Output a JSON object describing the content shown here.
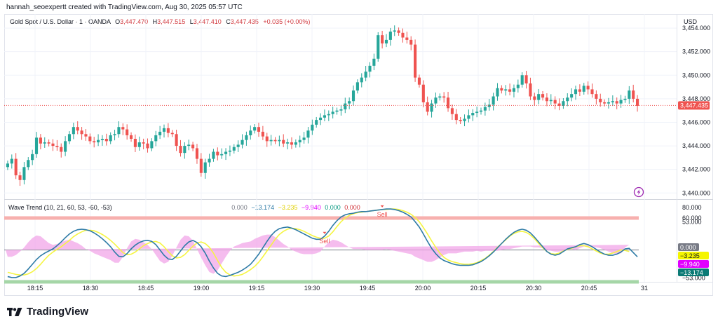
{
  "header": {
    "caption": "hannah_seoexpertt created with TradingView.com, Aug 30, 2025 05:57 UTC"
  },
  "legend": {
    "symbol": "Gold Spot / U.S. Dollar · 1 · OANDA",
    "o_label": "O",
    "o_value": "3,447.470",
    "h_label": "H",
    "h_value": "3,447.515",
    "l_label": "L",
    "l_value": "3,447.410",
    "c_label": "C",
    "c_value": "3,447.435",
    "change": "+0.035 (+0.00%)"
  },
  "indicator": {
    "name": "Wave Trend (10, 21, 60, 53, -60, -53)",
    "values": [
      "0.000",
      "−13.174",
      "−3.235",
      "−9.940",
      "0.000",
      "0.000"
    ]
  },
  "price_axis": {
    "currency": "USD",
    "last_price": "3,447.435"
  },
  "osc_axis_badges": [
    "0.000",
    "−3.235",
    "−9.940",
    "−13.174"
  ],
  "brand": {
    "name": "TradingView"
  },
  "colors": {
    "up": "#26a69a",
    "down": "#ef5350",
    "wt1": "#2e7ba6",
    "wt2": "#f5f542",
    "histogram": "#f2a6e8",
    "overbought": "#f7b0ae",
    "oversold": "#a5d6a7",
    "badge_wt1": "#0b7a75",
    "badge_wt2": "#f5f500",
    "badge_diff": "#e100ff"
  },
  "chart_data": [
    {
      "type": "candlestick",
      "title": "Gold Spot / U.S. Dollar · 1 · OANDA",
      "y_ticks": [
        3440,
        3442,
        3444,
        3446,
        3448,
        3450,
        3452,
        3454
      ],
      "y_tick_labels": [
        "3,440.000",
        "3,442.000",
        "3,444.000",
        "3,446.000",
        "3,448.000",
        "3,450.000",
        "3,452.000",
        "3,454.000"
      ],
      "ylim": [
        3439.6,
        3454.6
      ],
      "x_ticks": [
        "18:15",
        "18:30",
        "18:45",
        "19:00",
        "19:15",
        "19:30",
        "19:45",
        "20:00",
        "20:15",
        "20:30",
        "20:45",
        "31"
      ],
      "last_price": 3447.435,
      "closes": [
        3442.5,
        3442.9,
        3441.5,
        3441.1,
        3442.2,
        3442.8,
        3443.3,
        3444.7,
        3444.2,
        3444.3,
        3444.2,
        3444.0,
        3443.9,
        3443.5,
        3444.4,
        3445.0,
        3445.6,
        3445.3,
        3445.0,
        3444.8,
        3444.4,
        3444.3,
        3444.5,
        3444.6,
        3444.4,
        3444.9,
        3445.0,
        3445.6,
        3445.4,
        3444.9,
        3444.6,
        3443.9,
        3444.3,
        3444.2,
        3443.8,
        3444.4,
        3444.9,
        3445.2,
        3445.5,
        3445.1,
        3445.0,
        3444.0,
        3443.4,
        3444.0,
        3444.1,
        3443.8,
        3442.9,
        3441.7,
        3442.6,
        3442.9,
        3443.5,
        3443.2,
        3443.3,
        3443.5,
        3443.6,
        3443.9,
        3444.1,
        3444.5,
        3444.9,
        3445.3,
        3445.6,
        3445.2,
        3444.8,
        3444.4,
        3444.5,
        3444.4,
        3444.5,
        3444.2,
        3444.3,
        3444.1,
        3444.3,
        3444.5,
        3444.7,
        3445.3,
        3445.8,
        3446.2,
        3446.4,
        3446.6,
        3446.7,
        3446.9,
        3447.0,
        3447.1,
        3447.6,
        3447.8,
        3448.7,
        3449.4,
        3449.8,
        3450.3,
        3450.8,
        3451.4,
        3453.4,
        3452.7,
        3453.0,
        3453.7,
        3453.8,
        3453.6,
        3453.2,
        3453.0,
        3452.6,
        3449.8,
        3449.2,
        3447.7,
        3446.9,
        3447.6,
        3448.1,
        3448.2,
        3448.1,
        3447.2,
        3446.7,
        3446.2,
        3446.1,
        3446.3,
        3446.6,
        3446.8,
        3446.9,
        3447.0,
        3447.3,
        3447.5,
        3448.2,
        3448.9,
        3448.7,
        3448.8,
        3448.6,
        3448.9,
        3449.2,
        3450.0,
        3449.3,
        3448.2,
        3447.9,
        3448.4,
        3448.1,
        3447.8,
        3447.9,
        3447.6,
        3447.4,
        3447.8,
        3448.1,
        3448.4,
        3448.8,
        3448.6,
        3449.1,
        3448.8,
        3448.4,
        3448.0,
        3447.7,
        3447.6,
        3447.7,
        3447.8,
        3447.6,
        3447.9,
        3448.0,
        3448.7,
        3448.0,
        3447.4
      ]
    },
    {
      "type": "line",
      "title": "Wave Trend (10, 21, 60, 53, -60, -53)",
      "ylim": [
        -60,
        85
      ],
      "y_tick_labels": [
        "80.000",
        "60.000",
        "53.000",
        "−53.000"
      ],
      "overbought": 60,
      "oversold": -60,
      "annotations": [
        {
          "label": "Sell",
          "index": 77
        },
        {
          "label": "Sell",
          "index": 91
        }
      ],
      "series": [
        {
          "name": "",
          "values": [
            -50,
            -52,
            -52,
            -49,
            -44,
            -36,
            -27,
            -18,
            -11,
            -6,
            -2,
            2,
            8,
            15,
            23,
            30,
            35,
            38,
            39,
            38,
            36,
            32,
            27,
            21,
            14,
            6,
            -4,
            -12,
            -13,
            -7,
            2,
            9,
            14,
            17,
            18,
            16,
            10,
            0,
            -10,
            -17,
            -18,
            -12,
            -2,
            8,
            15,
            18,
            14,
            6,
            -6,
            -21,
            -34,
            -44,
            -49,
            -50,
            -48,
            -45,
            -42,
            -38,
            -33,
            -27,
            -18,
            -8,
            4,
            16,
            27,
            35,
            40,
            42,
            43,
            41,
            38,
            34,
            30,
            26,
            22,
            20,
            20,
            26,
            35,
            46,
            55,
            62,
            66,
            68,
            69,
            71,
            72,
            72,
            73,
            74,
            75,
            76,
            77,
            77,
            76,
            74,
            71,
            67,
            62,
            53,
            43,
            30,
            16,
            3,
            -7,
            -15,
            -20,
            -23,
            -26,
            -28,
            -29,
            -29,
            -29,
            -28,
            -25,
            -22,
            -17,
            -11,
            -4,
            4,
            12,
            20,
            27,
            33,
            37,
            39,
            37,
            32,
            24,
            15,
            6,
            -3,
            -8,
            -10,
            -8,
            -3,
            2,
            4,
            6,
            10,
            12,
            10,
            6,
            1,
            -4,
            -8,
            -10,
            -10,
            -8,
            -4,
            2,
            3,
            -5,
            -13
          ]
        },
        {
          "name": "",
          "values": [
            -42,
            -44,
            -46,
            -47,
            -47,
            -45,
            -41,
            -35,
            -27,
            -18,
            -10,
            -4,
            1,
            6,
            12,
            18,
            25,
            30,
            34,
            37,
            37,
            36,
            33,
            29,
            24,
            18,
            11,
            3,
            -5,
            -9,
            -8,
            -4,
            2,
            8,
            12,
            15,
            16,
            13,
            6,
            -3,
            -11,
            -15,
            -14,
            -9,
            -1,
            7,
            13,
            15,
            12,
            5,
            -6,
            -20,
            -33,
            -42,
            -47,
            -49,
            -48,
            -46,
            -42,
            -37,
            -31,
            -23,
            -13,
            -2,
            9,
            20,
            29,
            35,
            39,
            41,
            40,
            38,
            35,
            31,
            27,
            24,
            22,
            22,
            26,
            34,
            44,
            53,
            60,
            65,
            68,
            70,
            71,
            72,
            73,
            74,
            75,
            76,
            76,
            77,
            77,
            76,
            74,
            71,
            67,
            61,
            53,
            42,
            30,
            17,
            5,
            -6,
            -14,
            -19,
            -22,
            -24,
            -26,
            -27,
            -27,
            -26,
            -24,
            -20,
            -16,
            -10,
            -3,
            5,
            12,
            19,
            26,
            31,
            34,
            35,
            33,
            28,
            21,
            12,
            4,
            -3,
            -7,
            -8,
            -6,
            -2,
            1,
            3,
            6,
            8,
            8,
            6,
            2,
            -2,
            -6,
            -8,
            -8,
            -6,
            -3,
            0,
            -1,
            -3
          ]
        }
      ]
    }
  ]
}
